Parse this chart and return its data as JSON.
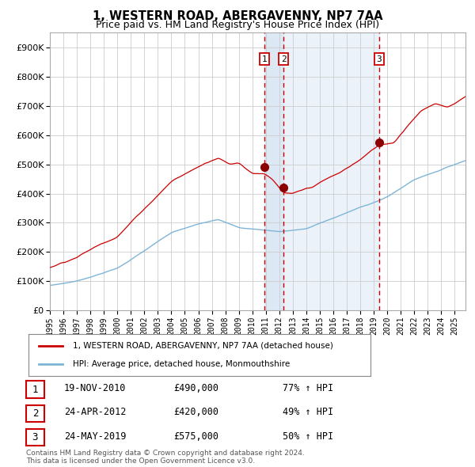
{
  "title": "1, WESTERN ROAD, ABERGAVENNY, NP7 7AA",
  "subtitle": "Price paid vs. HM Land Registry's House Price Index (HPI)",
  "title_fontsize": 10.5,
  "subtitle_fontsize": 9,
  "ylabel_ticks": [
    "£0",
    "£100K",
    "£200K",
    "£300K",
    "£400K",
    "£500K",
    "£600K",
    "£700K",
    "£800K",
    "£900K"
  ],
  "ytick_values": [
    0,
    100000,
    200000,
    300000,
    400000,
    500000,
    600000,
    700000,
    800000,
    900000
  ],
  "ylim": [
    0,
    950000
  ],
  "xlim_start": 1995.0,
  "xlim_end": 2025.8,
  "sale_dates": [
    2010.896,
    2012.315,
    2019.393
  ],
  "sale_prices": [
    490000,
    420000,
    575000
  ],
  "sale_labels": [
    "1",
    "2",
    "3"
  ],
  "red_line_color": "#cc0000",
  "blue_line_color": "#7eb5d6",
  "sale_dot_color": "#8b0000",
  "dashed_line_color": "#cc0000",
  "shade_color": "#dce9f5",
  "background_color": "#ffffff",
  "grid_color": "#cccccc",
  "legend_red_label": "1, WESTERN ROAD, ABERGAVENNY, NP7 7AA (detached house)",
  "legend_blue_label": "HPI: Average price, detached house, Monmouthshire",
  "transaction_rows": [
    {
      "num": "1",
      "date": "19-NOV-2010",
      "price": "£490,000",
      "pct": "77% ↑ HPI"
    },
    {
      "num": "2",
      "date": "24-APR-2012",
      "price": "£420,000",
      "pct": "49% ↑ HPI"
    },
    {
      "num": "3",
      "date": "24-MAY-2019",
      "price": "£575,000",
      "pct": "50% ↑ HPI"
    }
  ],
  "footer": "Contains HM Land Registry data © Crown copyright and database right 2024.\nThis data is licensed under the Open Government Licence v3.0."
}
